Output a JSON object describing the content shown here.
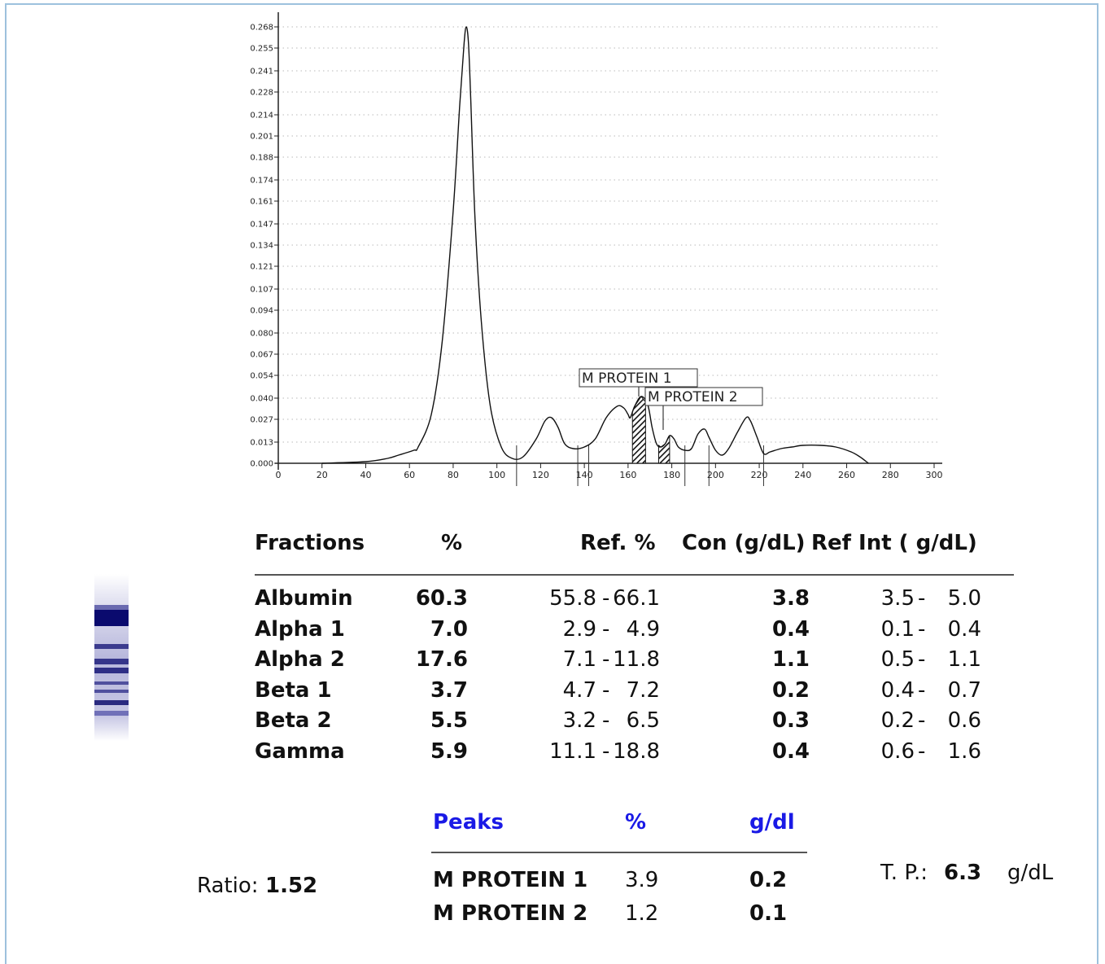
{
  "colors": {
    "frame": "#9dc1dd",
    "peaks_header": "#1a1ae6",
    "gel_band": "#0a0a6e"
  },
  "chart_data": {
    "type": "line",
    "title": "",
    "xlabel": "",
    "ylabel": "",
    "xlim": [
      0,
      300
    ],
    "ylim": [
      0,
      0.268
    ],
    "x_ticks": [
      0,
      20,
      40,
      60,
      80,
      100,
      120,
      140,
      160,
      180,
      200,
      220,
      240,
      260,
      280,
      300
    ],
    "x_tick_labels": [
      "0",
      "20",
      "40",
      "60",
      "80",
      "100",
      "120",
      "140",
      "160",
      "180",
      "200",
      "220",
      "240",
      "260",
      "280",
      "300"
    ],
    "y_ticks": [
      0.0,
      0.013,
      0.027,
      0.04,
      0.054,
      0.067,
      0.08,
      0.094,
      0.107,
      0.121,
      0.134,
      0.147,
      0.161,
      0.174,
      0.188,
      0.201,
      0.214,
      0.228,
      0.241,
      0.255,
      0.268
    ],
    "y_tick_labels": [
      "0.000",
      "0.013",
      "0.027",
      "0.040",
      "0.054",
      "0.067",
      "0.080",
      "0.094",
      "0.107",
      "0.121",
      "0.134",
      "0.147",
      "0.161",
      "0.174",
      "0.188",
      "0.201",
      "0.214",
      "0.228",
      "0.241",
      "0.255",
      "0.268"
    ],
    "grid": "dotted",
    "fraction_dividers": [
      109,
      137,
      142,
      186,
      197,
      222
    ],
    "series": [
      {
        "x": [
          20,
          40,
          50,
          55,
          62,
          64,
          70,
          75,
          80,
          83,
          85,
          86,
          87,
          88,
          90,
          93,
          97,
          102,
          107,
          112,
          118,
          122,
          125,
          128,
          131,
          135,
          140,
          145,
          150,
          155,
          158,
          160,
          161,
          163,
          166,
          169,
          171,
          173,
          175,
          177,
          179,
          181,
          183,
          186,
          189,
          192,
          195,
          197,
          200,
          203,
          206,
          210,
          214,
          216,
          219,
          222,
          225,
          230,
          235,
          240,
          248,
          255,
          262,
          266,
          269,
          270
        ],
        "y": [
          0.0,
          0.001,
          0.003,
          0.005,
          0.008,
          0.01,
          0.03,
          0.075,
          0.155,
          0.22,
          0.258,
          0.268,
          0.258,
          0.225,
          0.15,
          0.085,
          0.035,
          0.01,
          0.003,
          0.004,
          0.015,
          0.026,
          0.028,
          0.022,
          0.012,
          0.009,
          0.01,
          0.015,
          0.028,
          0.035,
          0.034,
          0.03,
          0.028,
          0.035,
          0.041,
          0.036,
          0.022,
          0.012,
          0.01,
          0.012,
          0.017,
          0.015,
          0.01,
          0.008,
          0.009,
          0.018,
          0.021,
          0.016,
          0.008,
          0.005,
          0.009,
          0.019,
          0.028,
          0.026,
          0.016,
          0.006,
          0.007,
          0.009,
          0.01,
          0.011,
          0.011,
          0.01,
          0.007,
          0.004,
          0.001,
          0.0
        ]
      }
    ],
    "shaded_regions": [
      {
        "label": "M PROTEIN 1",
        "x_range": [
          162,
          168
        ]
      },
      {
        "label": "M PROTEIN 2",
        "x_range": [
          174,
          179
        ]
      }
    ],
    "annotations": [
      {
        "text": "M PROTEIN 1",
        "x": 165,
        "y": 0.041
      },
      {
        "text": "M PROTEIN 2",
        "x": 176,
        "y": 0.02
      }
    ]
  },
  "fractions_table": {
    "headers": {
      "fraction": "Fractions",
      "percent": "%",
      "ref_percent": "Ref. %",
      "con": "Con (g/dL)",
      "ref_int": "Ref Int ( g/dL)"
    },
    "rows": [
      {
        "name": "Albumin",
        "percent": "60.3",
        "ref_lo": "55.8",
        "ref_hi": "66.1",
        "con": "3.8",
        "int_lo": "3.5",
        "int_hi": "5.0"
      },
      {
        "name": "Alpha 1",
        "percent": "7.0",
        "ref_lo": "2.9",
        "ref_hi": "4.9",
        "con": "0.4",
        "int_lo": "0.1",
        "int_hi": "0.4"
      },
      {
        "name": "Alpha 2",
        "percent": "17.6",
        "ref_lo": "7.1",
        "ref_hi": "11.8",
        "con": "1.1",
        "int_lo": "0.5",
        "int_hi": "1.1"
      },
      {
        "name": "Beta 1",
        "percent": "3.7",
        "ref_lo": "4.7",
        "ref_hi": "7.2",
        "con": "0.2",
        "int_lo": "0.4",
        "int_hi": "0.7"
      },
      {
        "name": "Beta 2",
        "percent": "5.5",
        "ref_lo": "3.2",
        "ref_hi": "6.5",
        "con": "0.3",
        "int_lo": "0.2",
        "int_hi": "0.6"
      },
      {
        "name": "Gamma",
        "percent": "5.9",
        "ref_lo": "11.1",
        "ref_hi": "18.8",
        "con": "0.4",
        "int_lo": "0.6",
        "int_hi": "1.6"
      }
    ]
  },
  "peaks_table": {
    "headers": {
      "peaks": "Peaks",
      "percent": "%",
      "gdl": "g/dl"
    },
    "rows": [
      {
        "name": "M PROTEIN 1",
        "percent": "3.9",
        "gdl": "0.2"
      },
      {
        "name": "M PROTEIN 2",
        "percent": "1.2",
        "gdl": "0.1"
      }
    ]
  },
  "ratio": {
    "label": "Ratio:",
    "value": "1.52"
  },
  "total_protein": {
    "label": "T. P.:",
    "value": "6.3",
    "unit": "g/dL"
  }
}
